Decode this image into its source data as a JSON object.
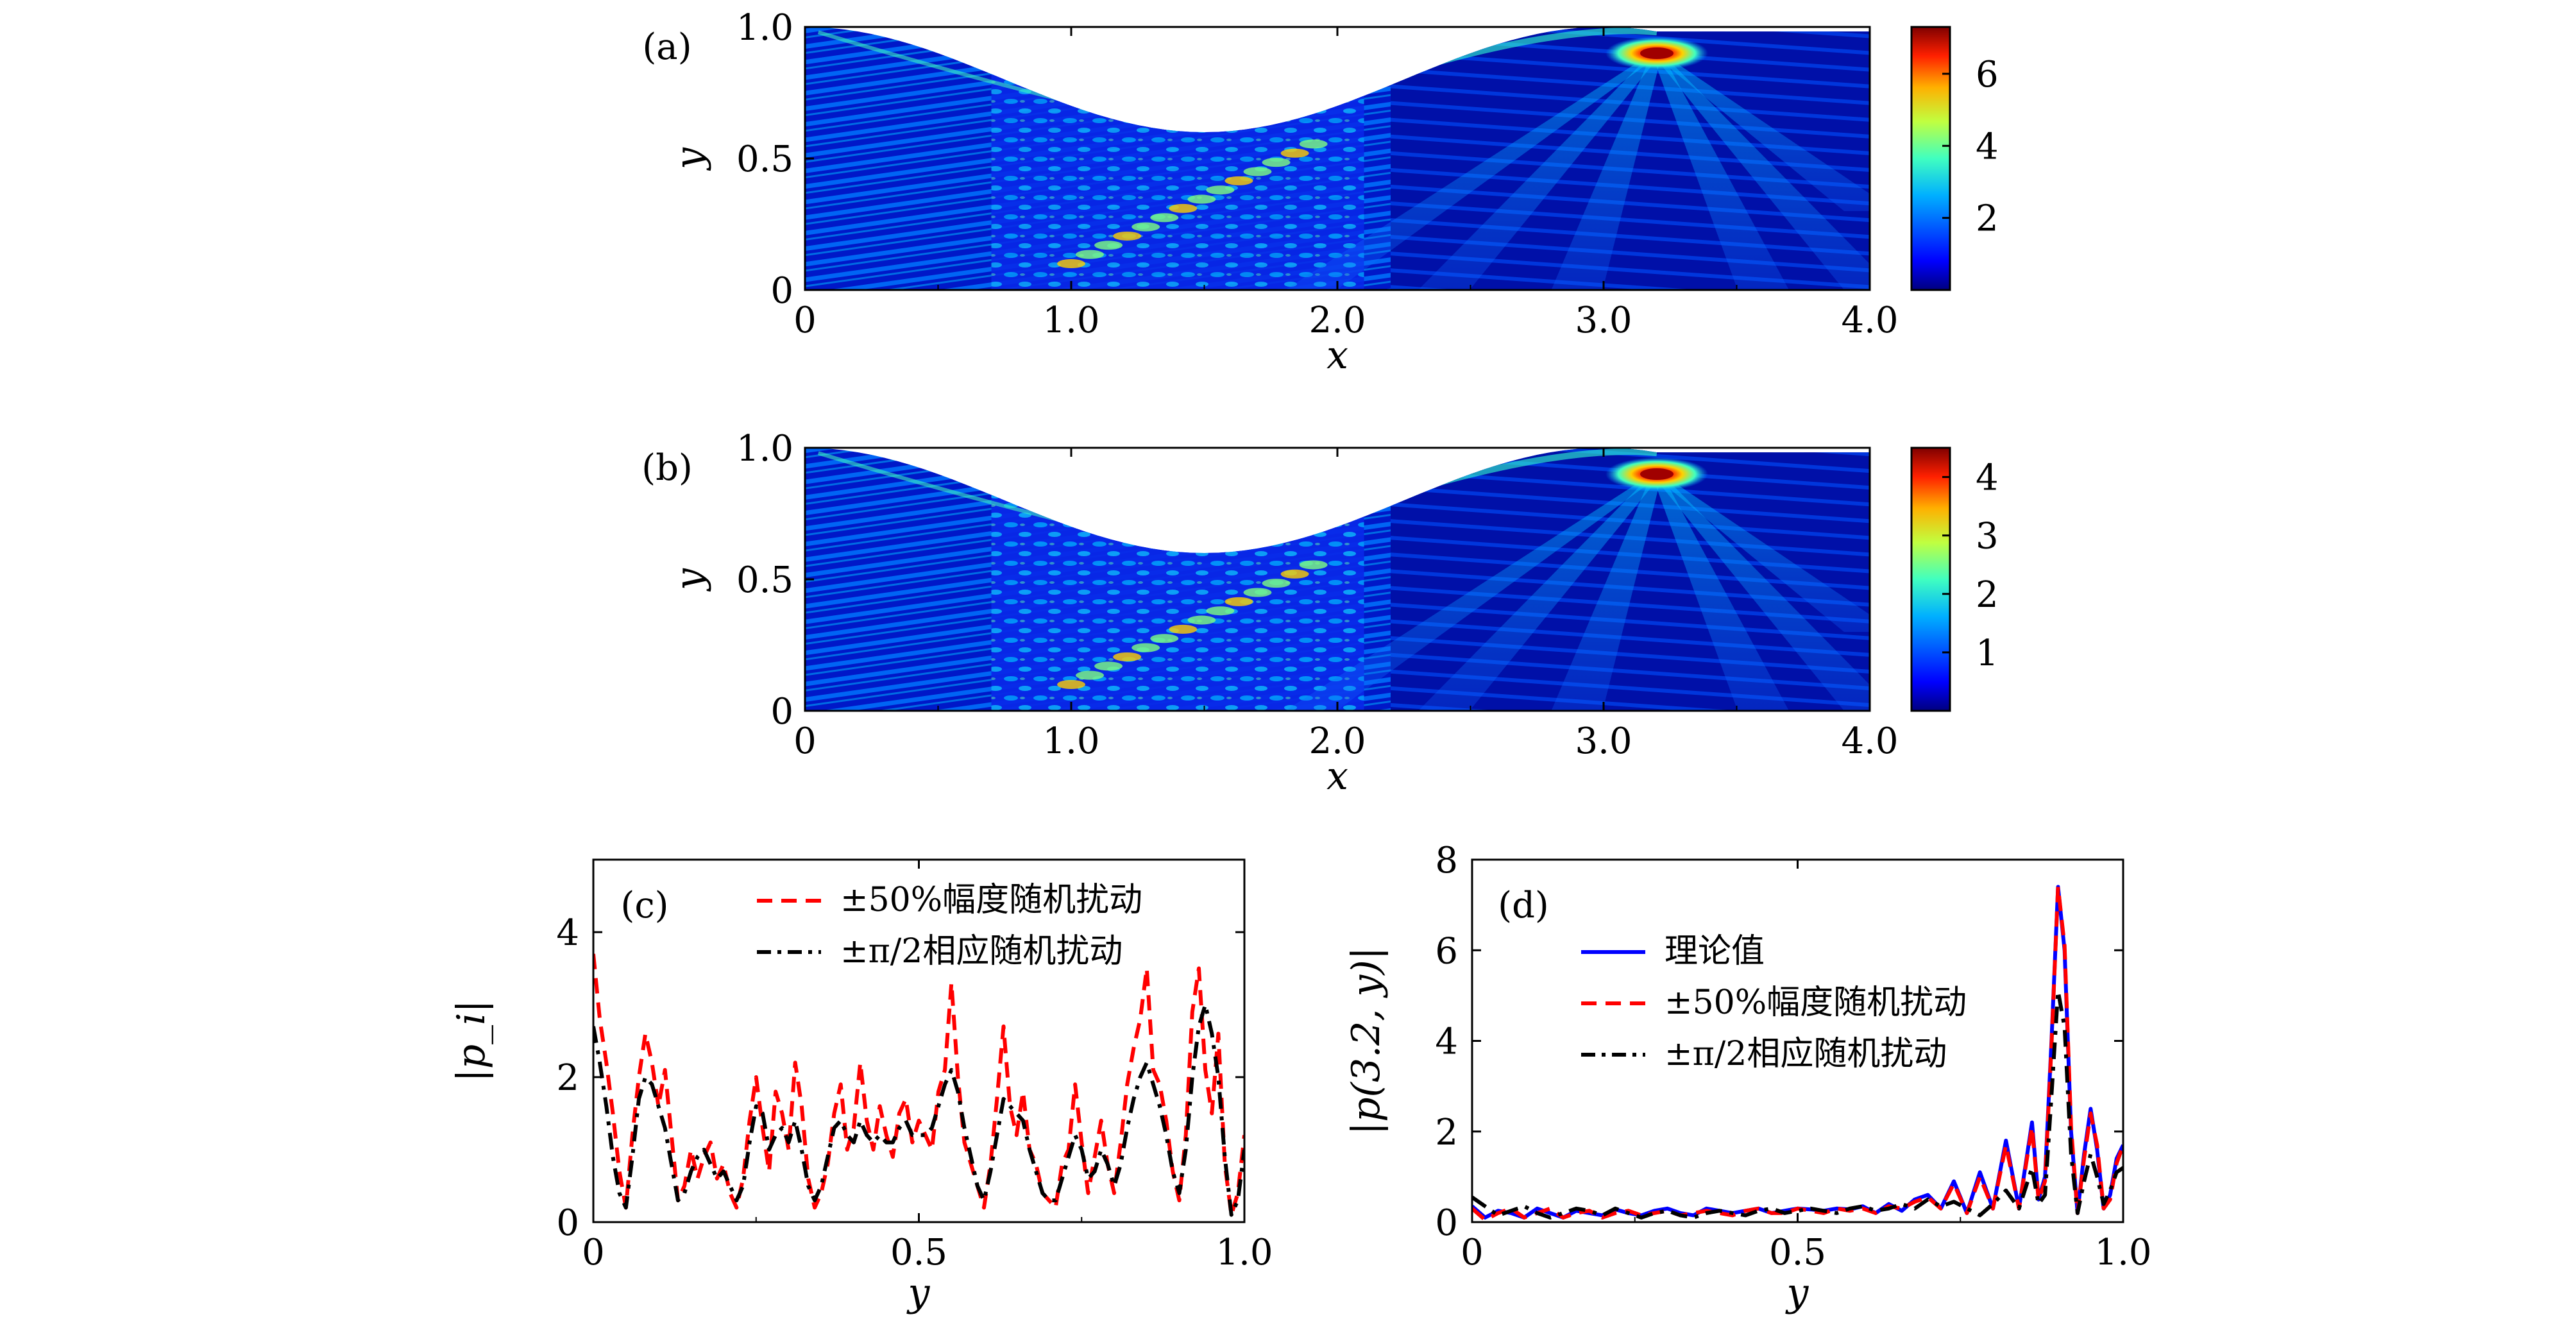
{
  "chart_data": [
    {
      "id": "a",
      "type": "heatmap",
      "panel_label": "(a)",
      "xlabel": "x",
      "ylabel": "y",
      "xlim": [
        0,
        4.0
      ],
      "ylim": [
        0,
        1.0
      ],
      "xticks": [
        "0",
        "1.0",
        "2.0",
        "3.0",
        "4.0"
      ],
      "yticks": [
        "0",
        "0.5",
        "1.0"
      ],
      "colorbar": {
        "ticks": [
          2,
          4,
          6
        ],
        "range": [
          0,
          7.3
        ]
      },
      "focus_peak": {
        "x": 3.2,
        "y": 0.9,
        "value": 7.3
      },
      "colormap": [
        "#00007f",
        "#0000ff",
        "#007fff",
        "#00ffff",
        "#7fff7f",
        "#ffff00",
        "#ff7f00",
        "#ff0000",
        "#7f0000"
      ]
    },
    {
      "id": "b",
      "type": "heatmap",
      "panel_label": "(b)",
      "xlabel": "x",
      "ylabel": "y",
      "xlim": [
        0,
        4.0
      ],
      "ylim": [
        0,
        1.0
      ],
      "xticks": [
        "0",
        "1.0",
        "2.0",
        "3.0",
        "4.0"
      ],
      "yticks": [
        "0",
        "0.5",
        "1.0"
      ],
      "colorbar": {
        "ticks": [
          1,
          2,
          3,
          4
        ],
        "range": [
          0,
          4.5
        ]
      },
      "focus_peak": {
        "x": 3.2,
        "y": 0.9,
        "value": 4.5
      },
      "colormap": [
        "#00007f",
        "#0000ff",
        "#007fff",
        "#00ffff",
        "#7fff7f",
        "#ffff00",
        "#ff7f00",
        "#ff0000",
        "#7f0000"
      ]
    },
    {
      "id": "c",
      "type": "line",
      "panel_label": "(c)",
      "xlabel": "y",
      "ylabel": "|p_i|",
      "xlim": [
        0,
        1.0
      ],
      "ylim": [
        0,
        5
      ],
      "xticks": [
        "0",
        "0.5",
        "1.0"
      ],
      "yticks": [
        "0",
        "2",
        "4"
      ],
      "legend_position": "top-right",
      "series": [
        {
          "name": "±50%幅度随机扰动",
          "color": "#ff0000",
          "dash": "dashed",
          "x": [
            0,
            0.01,
            0.02,
            0.03,
            0.04,
            0.05,
            0.06,
            0.07,
            0.08,
            0.09,
            0.1,
            0.11,
            0.12,
            0.13,
            0.14,
            0.15,
            0.16,
            0.17,
            0.18,
            0.19,
            0.2,
            0.21,
            0.22,
            0.23,
            0.24,
            0.25,
            0.26,
            0.27,
            0.28,
            0.29,
            0.3,
            0.31,
            0.32,
            0.33,
            0.34,
            0.35,
            0.36,
            0.37,
            0.38,
            0.39,
            0.4,
            0.41,
            0.42,
            0.43,
            0.44,
            0.45,
            0.46,
            0.47,
            0.48,
            0.49,
            0.5,
            0.51,
            0.52,
            0.53,
            0.54,
            0.55,
            0.56,
            0.57,
            0.58,
            0.59,
            0.6,
            0.61,
            0.62,
            0.63,
            0.64,
            0.65,
            0.66,
            0.67,
            0.68,
            0.69,
            0.7,
            0.71,
            0.72,
            0.73,
            0.74,
            0.75,
            0.76,
            0.77,
            0.78,
            0.79,
            0.8,
            0.81,
            0.82,
            0.83,
            0.84,
            0.85,
            0.86,
            0.87,
            0.88,
            0.89,
            0.9,
            0.91,
            0.92,
            0.93,
            0.94,
            0.95,
            0.96,
            0.97,
            0.98,
            0.99,
            1.0
          ],
          "values": [
            3.7,
            2.8,
            2.2,
            1.5,
            0.7,
            0.2,
            1.2,
            2.0,
            2.6,
            2.2,
            1.6,
            2.1,
            1.2,
            0.3,
            0.5,
            1.0,
            0.6,
            0.9,
            1.1,
            0.6,
            0.8,
            0.4,
            0.2,
            0.6,
            1.4,
            2.0,
            1.3,
            0.7,
            1.8,
            1.5,
            1.0,
            2.2,
            1.6,
            0.6,
            0.2,
            0.4,
            0.8,
            1.5,
            1.9,
            1.0,
            1.3,
            2.2,
            1.4,
            1.0,
            1.6,
            1.2,
            0.9,
            1.5,
            1.7,
            1.1,
            1.4,
            1.2,
            1.0,
            1.8,
            2.1,
            3.3,
            2.0,
            1.1,
            0.8,
            0.5,
            0.2,
            0.8,
            1.7,
            2.7,
            1.6,
            1.2,
            1.8,
            1.0,
            0.8,
            0.4,
            0.3,
            0.2,
            0.8,
            1.0,
            1.9,
            1.1,
            0.4,
            0.9,
            1.4,
            0.8,
            0.4,
            1.1,
            1.9,
            2.4,
            2.8,
            3.5,
            2.1,
            1.9,
            1.4,
            0.7,
            0.3,
            1.2,
            2.9,
            3.5,
            2.1,
            1.5,
            2.6,
            0.8,
            0.1,
            0.4,
            1.2
          ]
        },
        {
          "name": "±π/2相应随机扰动",
          "color": "#000000",
          "dash": "dashdot",
          "x": [
            0,
            0.01,
            0.02,
            0.03,
            0.04,
            0.05,
            0.06,
            0.07,
            0.08,
            0.09,
            0.1,
            0.11,
            0.12,
            0.13,
            0.14,
            0.15,
            0.16,
            0.17,
            0.18,
            0.19,
            0.2,
            0.21,
            0.22,
            0.23,
            0.24,
            0.25,
            0.26,
            0.27,
            0.28,
            0.29,
            0.3,
            0.31,
            0.32,
            0.33,
            0.34,
            0.35,
            0.36,
            0.37,
            0.38,
            0.39,
            0.4,
            0.41,
            0.42,
            0.43,
            0.44,
            0.45,
            0.46,
            0.47,
            0.48,
            0.49,
            0.5,
            0.51,
            0.52,
            0.53,
            0.54,
            0.55,
            0.56,
            0.57,
            0.58,
            0.59,
            0.6,
            0.61,
            0.62,
            0.63,
            0.64,
            0.65,
            0.66,
            0.67,
            0.68,
            0.69,
            0.7,
            0.71,
            0.72,
            0.73,
            0.74,
            0.75,
            0.76,
            0.77,
            0.78,
            0.79,
            0.8,
            0.81,
            0.82,
            0.83,
            0.84,
            0.85,
            0.86,
            0.87,
            0.88,
            0.89,
            0.9,
            0.91,
            0.92,
            0.93,
            0.94,
            0.95,
            0.96,
            0.97,
            0.98,
            0.99,
            1.0
          ],
          "values": [
            2.7,
            2.2,
            1.6,
            0.9,
            0.4,
            0.2,
            0.9,
            1.7,
            2.0,
            1.9,
            1.6,
            1.3,
            0.8,
            0.3,
            0.4,
            0.7,
            0.9,
            1.0,
            0.8,
            0.6,
            0.7,
            0.5,
            0.3,
            0.5,
            1.1,
            1.6,
            1.5,
            1.0,
            1.2,
            1.3,
            1.1,
            1.4,
            1.0,
            0.5,
            0.3,
            0.5,
            0.9,
            1.3,
            1.4,
            1.2,
            1.1,
            1.4,
            1.2,
            1.1,
            1.2,
            1.1,
            1.1,
            1.3,
            1.4,
            1.2,
            1.2,
            1.2,
            1.3,
            1.6,
            1.9,
            2.1,
            1.8,
            1.3,
            0.9,
            0.5,
            0.3,
            0.7,
            1.2,
            1.7,
            1.6,
            1.5,
            1.4,
            1.0,
            0.7,
            0.4,
            0.3,
            0.3,
            0.6,
            0.9,
            1.2,
            1.0,
            0.6,
            0.7,
            1.0,
            0.8,
            0.5,
            0.8,
            1.3,
            1.7,
            2.0,
            2.2,
            1.9,
            1.6,
            1.2,
            0.7,
            0.4,
            1.0,
            2.0,
            2.7,
            3.0,
            2.6,
            2.0,
            0.9,
            0.1,
            0.3,
            1.0
          ]
        }
      ]
    },
    {
      "id": "d",
      "type": "line",
      "panel_label": "(d)",
      "xlabel": "y",
      "ylabel": "|p(3.2, y)|",
      "xlim": [
        0,
        1.0
      ],
      "ylim": [
        0,
        8
      ],
      "xticks": [
        "0",
        "0.5",
        "1.0"
      ],
      "yticks": [
        "0",
        "2",
        "4",
        "6",
        "8"
      ],
      "legend_position": "upper-left",
      "series": [
        {
          "name": "理论值",
          "color": "#0000ff",
          "dash": "solid",
          "x": [
            0,
            0.02,
            0.04,
            0.06,
            0.08,
            0.1,
            0.12,
            0.14,
            0.16,
            0.18,
            0.2,
            0.22,
            0.24,
            0.26,
            0.28,
            0.3,
            0.32,
            0.34,
            0.36,
            0.38,
            0.4,
            0.42,
            0.44,
            0.46,
            0.48,
            0.5,
            0.52,
            0.54,
            0.56,
            0.58,
            0.6,
            0.62,
            0.64,
            0.66,
            0.68,
            0.7,
            0.72,
            0.74,
            0.76,
            0.78,
            0.8,
            0.82,
            0.84,
            0.86,
            0.87,
            0.88,
            0.89,
            0.9,
            0.91,
            0.92,
            0.93,
            0.94,
            0.95,
            0.96,
            0.97,
            0.98,
            0.99,
            1.0
          ],
          "values": [
            0.35,
            0.1,
            0.25,
            0.2,
            0.1,
            0.3,
            0.2,
            0.1,
            0.25,
            0.2,
            0.15,
            0.28,
            0.2,
            0.15,
            0.25,
            0.3,
            0.2,
            0.15,
            0.3,
            0.25,
            0.2,
            0.25,
            0.3,
            0.2,
            0.25,
            0.3,
            0.28,
            0.25,
            0.3,
            0.28,
            0.35,
            0.2,
            0.4,
            0.25,
            0.5,
            0.6,
            0.3,
            0.9,
            0.2,
            1.1,
            0.3,
            1.8,
            0.3,
            2.2,
            0.5,
            1.0,
            4.0,
            7.4,
            6.0,
            2.0,
            0.2,
            1.5,
            2.5,
            1.6,
            0.3,
            0.6,
            1.4,
            1.7
          ]
        },
        {
          "name": "±50%幅度随机扰动",
          "color": "#ff0000",
          "dash": "dashed",
          "x": [
            0,
            0.02,
            0.04,
            0.06,
            0.08,
            0.1,
            0.12,
            0.14,
            0.16,
            0.18,
            0.2,
            0.22,
            0.24,
            0.26,
            0.28,
            0.3,
            0.32,
            0.34,
            0.36,
            0.38,
            0.4,
            0.42,
            0.44,
            0.46,
            0.48,
            0.5,
            0.52,
            0.54,
            0.56,
            0.58,
            0.6,
            0.62,
            0.64,
            0.66,
            0.68,
            0.7,
            0.72,
            0.74,
            0.76,
            0.78,
            0.8,
            0.82,
            0.84,
            0.86,
            0.87,
            0.88,
            0.89,
            0.9,
            0.91,
            0.92,
            0.93,
            0.94,
            0.95,
            0.96,
            0.97,
            0.98,
            0.99,
            1.0
          ],
          "values": [
            0.3,
            0.05,
            0.2,
            0.3,
            0.1,
            0.2,
            0.3,
            0.1,
            0.2,
            0.25,
            0.1,
            0.2,
            0.25,
            0.15,
            0.2,
            0.25,
            0.15,
            0.2,
            0.25,
            0.2,
            0.15,
            0.25,
            0.3,
            0.2,
            0.2,
            0.3,
            0.25,
            0.2,
            0.3,
            0.25,
            0.3,
            0.2,
            0.35,
            0.3,
            0.45,
            0.55,
            0.3,
            0.85,
            0.2,
            1.0,
            0.3,
            1.7,
            0.3,
            2.1,
            0.5,
            0.9,
            3.9,
            7.4,
            6.1,
            2.1,
            0.2,
            1.4,
            2.4,
            1.7,
            0.3,
            0.5,
            1.3,
            1.7
          ]
        },
        {
          "name": "±π/2相应随机扰动",
          "color": "#000000",
          "dash": "dashdot",
          "x": [
            0,
            0.02,
            0.04,
            0.06,
            0.08,
            0.1,
            0.12,
            0.14,
            0.16,
            0.18,
            0.2,
            0.22,
            0.24,
            0.26,
            0.28,
            0.3,
            0.32,
            0.34,
            0.36,
            0.38,
            0.4,
            0.42,
            0.44,
            0.46,
            0.48,
            0.5,
            0.52,
            0.54,
            0.56,
            0.58,
            0.6,
            0.62,
            0.64,
            0.66,
            0.68,
            0.7,
            0.72,
            0.74,
            0.76,
            0.78,
            0.8,
            0.82,
            0.84,
            0.86,
            0.87,
            0.88,
            0.89,
            0.9,
            0.91,
            0.92,
            0.93,
            0.94,
            0.95,
            0.96,
            0.97,
            0.98,
            0.99,
            1.0
          ],
          "values": [
            0.55,
            0.35,
            0.15,
            0.25,
            0.35,
            0.2,
            0.1,
            0.2,
            0.3,
            0.25,
            0.15,
            0.3,
            0.2,
            0.1,
            0.2,
            0.25,
            0.15,
            0.1,
            0.2,
            0.25,
            0.2,
            0.15,
            0.25,
            0.3,
            0.2,
            0.25,
            0.3,
            0.25,
            0.2,
            0.3,
            0.35,
            0.25,
            0.3,
            0.4,
            0.3,
            0.5,
            0.35,
            0.45,
            0.3,
            0.15,
            0.4,
            0.7,
            0.3,
            1.2,
            0.4,
            0.6,
            2.8,
            5.1,
            4.3,
            1.5,
            0.2,
            0.9,
            1.5,
            1.0,
            0.4,
            0.7,
            1.1,
            1.2
          ]
        }
      ]
    }
  ]
}
